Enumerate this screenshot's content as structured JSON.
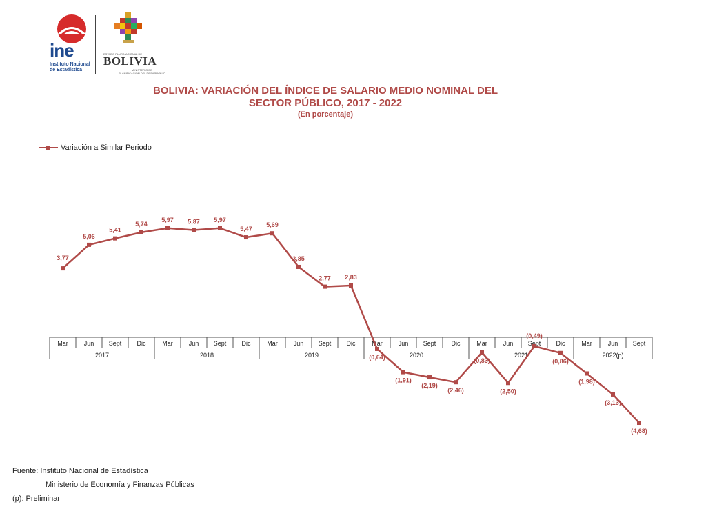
{
  "header": {
    "ine_logo_text": "ine",
    "ine_subtitle_1": "Instituto Nacional",
    "ine_subtitle_2": "de Estadística",
    "bolivia_top": "ESTADO PLURINACIONAL DE",
    "bolivia_name": "BOLIVIA",
    "bolivia_ministry_1": "MINISTERIO DE",
    "bolivia_ministry_2": "PLANIFICACIÓN DEL DESARROLLO"
  },
  "colors": {
    "series": "#b04a48",
    "title": "#b04a48",
    "axis": "#555555",
    "ine_blue": "#1f4a8f",
    "ine_red": "#d62b2b"
  },
  "chart_data": {
    "type": "line",
    "title": "BOLIVIA: VARIACIÓN DEL ÍNDICE DE SALARIO MEDIO NOMINAL DEL",
    "title_line2": "SECTOR PÚBLICO,  2017 - 2022",
    "subtitle": "(En porcentaje)",
    "legend": "Variación a Similar Periodo",
    "legend_position": "top-left",
    "categories": [
      "Mar",
      "Jun",
      "Sept",
      "Dic",
      "Mar",
      "Jun",
      "Sept",
      "Dic",
      "Mar",
      "Jun",
      "Sept",
      "Dic",
      "Mar",
      "Jun",
      "Sept",
      "Dic",
      "Mar",
      "Jun",
      "Sept",
      "Dic",
      "Mar",
      "Jun",
      "Sept"
    ],
    "groups": [
      "2017",
      "2018",
      "2019",
      "2020",
      "2021",
      "2022(p)"
    ],
    "series": [
      {
        "name": "Variación a Similar Periodo",
        "values": [
          3.77,
          5.06,
          5.41,
          5.74,
          5.97,
          5.87,
          5.97,
          5.47,
          5.69,
          3.85,
          2.77,
          2.83,
          -0.64,
          -1.91,
          -2.19,
          -2.46,
          -0.83,
          -2.5,
          -0.49,
          -0.86,
          -1.98,
          -3.13,
          -4.68
        ],
        "labels": [
          "3,77",
          "5,06",
          "5,41",
          "5,74",
          "5,97",
          "5,87",
          "5,97",
          "5,47",
          "5,69",
          "3,85",
          "2,77",
          "2,83",
          "(0,64)",
          "(1,91)",
          "(2,19)",
          "(2,46)",
          "(0,83)",
          "(2,50)",
          "(0,49)",
          "(0,86)",
          "(1,98)",
          "(3,13)",
          "(4,68)"
        ]
      }
    ],
    "ylim": [
      -5.5,
      8
    ],
    "grid": false
  },
  "footer": {
    "source_line1": "Fuente: Instituto Nacional de Estadística",
    "source_line2": "Ministerio de Economía y Finanzas Públicas",
    "note": "(p): Preliminar"
  }
}
